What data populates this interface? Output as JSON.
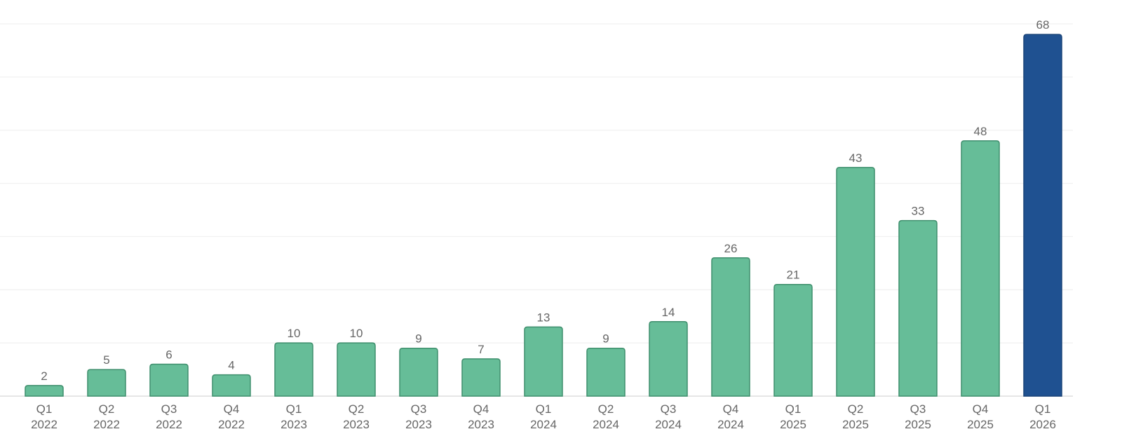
{
  "chart_data": {
    "type": "bar",
    "categories": [
      [
        "Q1",
        "2022"
      ],
      [
        "Q2",
        "2022"
      ],
      [
        "Q3",
        "2022"
      ],
      [
        "Q4",
        "2022"
      ],
      [
        "Q1",
        "2023"
      ],
      [
        "Q2",
        "2023"
      ],
      [
        "Q3",
        "2023"
      ],
      [
        "Q4",
        "2023"
      ],
      [
        "Q1",
        "2024"
      ],
      [
        "Q2",
        "2024"
      ],
      [
        "Q3",
        "2024"
      ],
      [
        "Q4",
        "2024"
      ],
      [
        "Q1",
        "2025"
      ],
      [
        "Q2",
        "2025"
      ],
      [
        "Q3",
        "2025"
      ],
      [
        "Q4",
        "2025"
      ],
      [
        "Q1",
        "2026"
      ]
    ],
    "values": [
      2,
      5,
      6,
      4,
      10,
      10,
      9,
      7,
      13,
      9,
      14,
      26,
      21,
      43,
      33,
      48,
      68
    ],
    "colors": [
      "#66bd98",
      "#66bd98",
      "#66bd98",
      "#66bd98",
      "#66bd98",
      "#66bd98",
      "#66bd98",
      "#66bd98",
      "#66bd98",
      "#66bd98",
      "#66bd98",
      "#66bd98",
      "#66bd98",
      "#66bd98",
      "#66bd98",
      "#66bd98",
      "#1f5191"
    ],
    "ylim": [
      0,
      70
    ],
    "yticks": [
      0,
      10,
      20,
      30,
      40,
      50,
      60,
      70
    ],
    "grid": true
  }
}
